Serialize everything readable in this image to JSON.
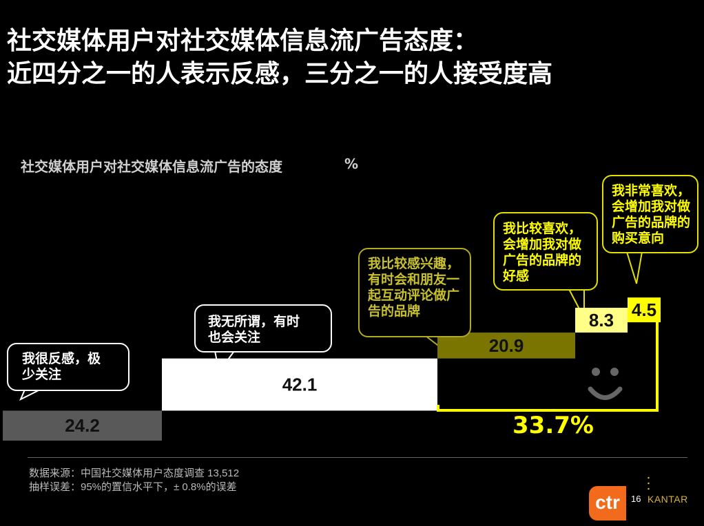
{
  "header": {
    "title_line1": "社交媒体用户对社交媒体信息流广告态度：",
    "title_line2": "近四分之一的人表示反感，三分之一的人接受度高"
  },
  "chart_data": {
    "type": "bar",
    "title": "社交媒体用户对社交媒体信息流广告的态度",
    "unit": "%",
    "categories": [
      "我很反感，极少关注",
      "我无所谓，有时也会关注",
      "我比较感兴趣，有时会和朋友一起互动评论做广告的品牌",
      "我比较喜欢，会增加我对做广告的品牌的好感",
      "我非常喜欢，会增加我对做广告的品牌的购买意向"
    ],
    "values": [
      24.2,
      42.1,
      20.9,
      8.3,
      4.5
    ],
    "value_labels": [
      "24.2",
      "42.1",
      "20.9",
      "8.3",
      "4.5"
    ],
    "bar_colors": [
      "#595959",
      "#ffffff",
      "#7a7500",
      "#ffff88",
      "#ffff00"
    ],
    "label_colors": [
      "#111111",
      "#111111",
      "#111111",
      "#111111",
      "#111111"
    ],
    "bracket_total": "33.7%",
    "bracket_color": "#ffff00"
  },
  "bubbles": {
    "b0": [
      "我很反感，极",
      "少关注"
    ],
    "b1": [
      "我无所谓，有时",
      "也会关注"
    ],
    "b2": [
      "我比较感兴趣，",
      "有时会和朋友一",
      "起互动评论做广",
      "告的品牌"
    ],
    "b3": [
      "我比较喜欢，",
      "会增加我对做",
      "广告的品牌的",
      "好感"
    ],
    "b4": [
      "我非常喜欢，",
      "会增加我对做",
      "广告的品牌的",
      "购买意向"
    ]
  },
  "smiley_icon": "smiley-face-icon",
  "footer": {
    "source": "数据来源：中国社交媒体用户态度调查 13,512",
    "error": "抽样误差：95%的置信水平下，± 0.8%的误差",
    "page_number": "16",
    "logo_ctr": "ctr",
    "logo_kantar": "KANTAR"
  }
}
